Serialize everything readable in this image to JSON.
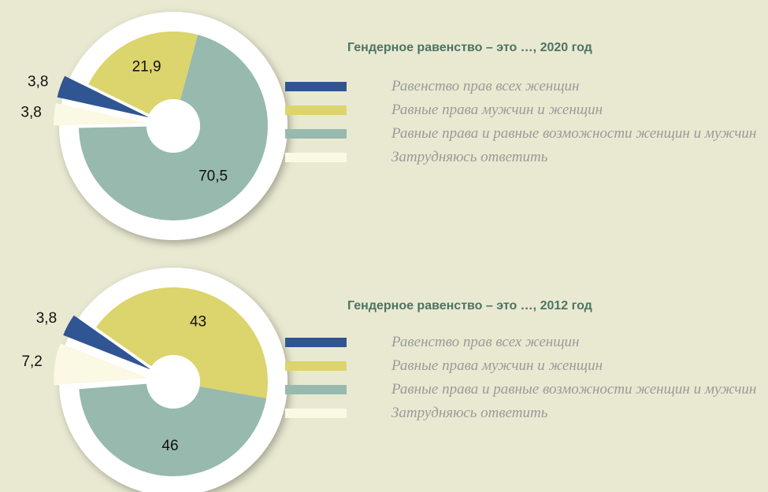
{
  "chart_data": [
    {
      "type": "pie",
      "title": "Гендерное равенство – это …, 2020 год",
      "categories": [
        "Равенство прав всех женщин",
        "Равные права мужчин и женщин",
        "Равные права и равные возможности женщин и мужчин",
        "Затрудняюсь ответить"
      ],
      "values": [
        3.8,
        21.9,
        70.5,
        3.8
      ],
      "value_labels": [
        "3,8",
        "21,9",
        "70,5",
        "3,8"
      ],
      "colors": [
        "#2f5592",
        "#dcd46c",
        "#97b9ae",
        "#fbf8e3"
      ]
    },
    {
      "type": "pie",
      "title": "Гендерное равенство – это …, 2012 год",
      "categories": [
        "Равенство прав всех женщин",
        "Равные права мужчин и женщин",
        "Равные права и равные возможности женщин и мужчин",
        "Затрудняюсь ответить"
      ],
      "values": [
        3.8,
        43,
        46,
        7.2
      ],
      "value_labels": [
        "3,8",
        "43",
        "46",
        "7,2"
      ],
      "colors": [
        "#2f5592",
        "#dcd46c",
        "#97b9ae",
        "#fbf8e3"
      ]
    }
  ]
}
